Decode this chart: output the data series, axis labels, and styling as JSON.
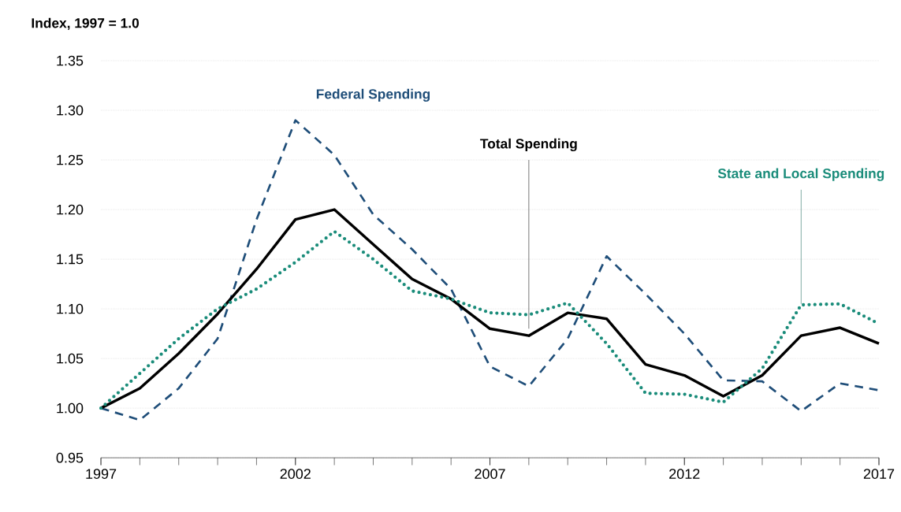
{
  "chart_data": {
    "type": "line",
    "ylabel": "Index, 1997 = 1.0",
    "x": [
      1997,
      1998,
      1999,
      2000,
      2001,
      2002,
      2003,
      2004,
      2005,
      2006,
      2007,
      2008,
      2009,
      2010,
      2011,
      2012,
      2013,
      2014,
      2015,
      2016,
      2017
    ],
    "series": [
      {
        "name": "Federal Spending",
        "color": "#1f4e79",
        "line_style": "dashed",
        "values": [
          1.0,
          0.988,
          1.02,
          1.07,
          1.19,
          1.29,
          1.255,
          1.195,
          1.16,
          1.12,
          1.042,
          1.022,
          1.07,
          1.153,
          1.115,
          1.075,
          1.028,
          1.027,
          0.997,
          1.025,
          1.018
        ]
      },
      {
        "name": "Total Spending",
        "color": "#000000",
        "line_style": "solid",
        "values": [
          1.0,
          1.02,
          1.055,
          1.095,
          1.14,
          1.19,
          1.2,
          1.165,
          1.13,
          1.11,
          1.08,
          1.073,
          1.096,
          1.09,
          1.044,
          1.033,
          1.012,
          1.033,
          1.073,
          1.081,
          1.065
        ]
      },
      {
        "name": "State and Local Spending",
        "color": "#1a8c7a",
        "line_style": "dotted",
        "values": [
          1.0,
          1.035,
          1.07,
          1.1,
          1.12,
          1.147,
          1.178,
          1.15,
          1.118,
          1.11,
          1.096,
          1.094,
          1.106,
          1.065,
          1.015,
          1.014,
          1.006,
          1.04,
          1.104,
          1.105,
          1.085
        ]
      }
    ],
    "xlim": [
      1997,
      2017
    ],
    "xticks": [
      1997,
      2002,
      2007,
      2012,
      2017
    ],
    "ylim": [
      0.95,
      1.35
    ],
    "yticks": [
      0.95,
      {
        "value": 1.0,
        "label": "1.00"
      },
      1.05,
      {
        "value": 1.1,
        "label": "1.10"
      },
      1.15,
      {
        "value": 1.2,
        "label": "1.20"
      },
      1.25,
      {
        "value": 1.3,
        "label": "1.30"
      },
      1.35
    ],
    "grid": "y",
    "legend": false,
    "marker": "none"
  }
}
